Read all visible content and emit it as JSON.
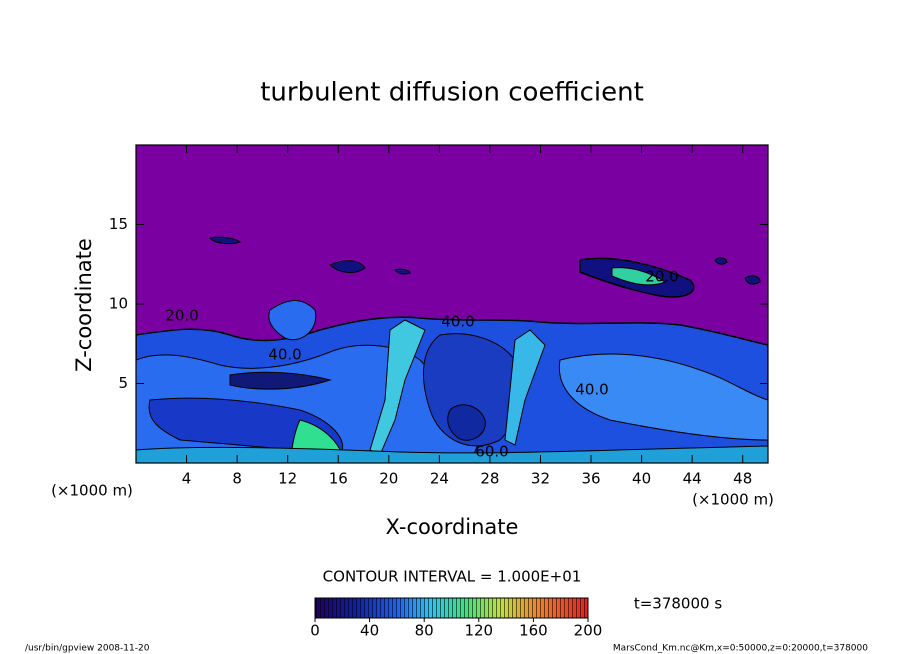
{
  "chart_data": {
    "type": "contour",
    "title": "turbulent diffusion coefficient",
    "x_label": "X-coordinate",
    "y_label": "Z-coordinate",
    "x_unit": "(×1000 m)",
    "xlim": [
      0,
      50
    ],
    "xticks": [
      4,
      8,
      12,
      16,
      20,
      24,
      28,
      32,
      36,
      40,
      44,
      48
    ],
    "ylim": [
      0,
      20
    ],
    "yticks": [
      5,
      10,
      15
    ],
    "contour_interval": "CONTOUR INTERVAL = 1.000E+01",
    "contour_labels": [
      "20.0",
      "20.0",
      "40.0",
      "40.0",
      "40.0",
      "60.0"
    ],
    "colorbar_lim": [
      0,
      200
    ],
    "colorbar_ticks": [
      0,
      40,
      80,
      120,
      160,
      200
    ],
    "time": "t=378000 s",
    "footer_left": "/usr/bin/gpview   2008-11-20",
    "footer_right": "MarsCond_Km.nc@Km,x=0:50000,z=0:20000,t=378000"
  }
}
